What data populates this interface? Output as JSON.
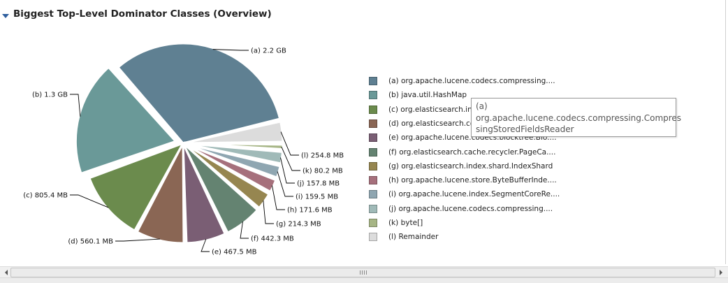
{
  "header": {
    "title": "Biggest Top-Level Dominator Classes (Overview)"
  },
  "chart_data": {
    "type": "pie",
    "title": "Biggest Top-Level Dominator Classes (Overview)",
    "unit": "MB",
    "slices": [
      {
        "key": "a",
        "label": "(a)  2.2 GB",
        "value": 2250.0,
        "color": "#5f8092",
        "explode": false,
        "legend": "(a)  org.apache.lucene.codecs.compressing...."
      },
      {
        "key": "b",
        "label": "(b)  1.3 GB",
        "value": 1300.0,
        "color": "#6a9998",
        "explode": true,
        "legend": "(b)  java.util.HashMap"
      },
      {
        "key": "c",
        "label": "(c)  805.4 MB",
        "value": 805.4,
        "color": "#6b8b4d",
        "explode": false,
        "legend": "(c)  org.elasticsearch.index.cache...."
      },
      {
        "key": "d",
        "label": "(d)  560.1 MB",
        "value": 560.1,
        "color": "#8a6654",
        "explode": false,
        "legend": "(d)  org.elasticsearch.common.util...."
      },
      {
        "key": "e",
        "label": "(e)  467.5 MB",
        "value": 467.5,
        "color": "#7a5e74",
        "explode": false,
        "legend": "(e)  org.apache.lucene.codecs.blocktree.Blo...."
      },
      {
        "key": "f",
        "label": "(f)  442.3 MB",
        "value": 442.3,
        "color": "#648371",
        "explode": false,
        "legend": "(f)  org.elasticsearch.cache.recycler.PageCa...."
      },
      {
        "key": "g",
        "label": "(g)  214.3 MB",
        "value": 214.3,
        "color": "#968650",
        "explode": false,
        "legend": "(g)  org.elasticsearch.index.shard.IndexShard"
      },
      {
        "key": "h",
        "label": "(h)  171.6 MB",
        "value": 171.6,
        "color": "#a6707c",
        "explode": false,
        "legend": "(h)  org.apache.lucene.store.ByteBufferInde...."
      },
      {
        "key": "i",
        "label": "(i)  159.5 MB",
        "value": 159.5,
        "color": "#8fa6b1",
        "explode": false,
        "legend": "(i)  org.apache.lucene.index.SegmentCoreRe...."
      },
      {
        "key": "j",
        "label": "(j)  157.8 MB",
        "value": 157.8,
        "color": "#a0bab8",
        "explode": false,
        "legend": "(j)  org.apache.lucene.codecs.compressing...."
      },
      {
        "key": "k",
        "label": "(k)  80.2 MB",
        "value": 80.2,
        "color": "#a6b585",
        "explode": false,
        "legend": "(k)  byte[]"
      },
      {
        "key": "l",
        "label": "(l)  254.8 MB",
        "value": 254.8,
        "color": "#dcdcdc",
        "explode": false,
        "legend": "(l)  Remainder"
      }
    ],
    "legend_position": "right"
  },
  "tooltip": {
    "line1": "(a)",
    "line2": "org.apache.lucene.codecs.compressing.Compres",
    "line3": "singStoredFieldsReader"
  },
  "scrollbar": {
    "grip_icon": "grip-icon"
  }
}
